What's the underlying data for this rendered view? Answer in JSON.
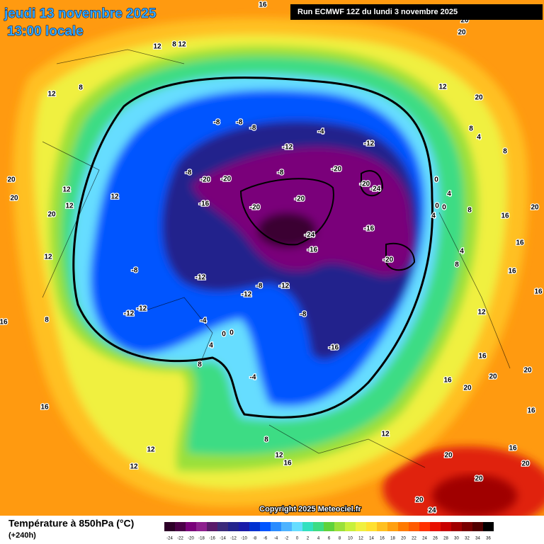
{
  "header": {
    "date": "jeudi 13 novembre 2025",
    "time": "13:00 locale",
    "run": "Run ECMWF 12Z du lundi 3 novembre 2025"
  },
  "copyright": "Copyright 2025 Meteociel.fr",
  "footer": {
    "title": "Température à 850hPa (°C)",
    "lead": "(+240h)"
  },
  "legend": {
    "labels": [
      -24,
      -22,
      -20,
      -18,
      -16,
      -14,
      -12,
      -10,
      -8,
      -6,
      -4,
      -2,
      0,
      2,
      4,
      6,
      8,
      10,
      12,
      14,
      16,
      18,
      20,
      22,
      24,
      26,
      28,
      30,
      32,
      34,
      36
    ],
    "colors": [
      "#2d0028",
      "#4b0047",
      "#7a007a",
      "#8e1f8e",
      "#5a1a6a",
      "#3b2a7a",
      "#23238c",
      "#1a1aa8",
      "#0030d0",
      "#0055ff",
      "#2a8cff",
      "#4db3ff",
      "#66ddff",
      "#33e0c0",
      "#3ddc84",
      "#5fd23b",
      "#9ae03a",
      "#c8f03c",
      "#f0f040",
      "#ffe030",
      "#ffc020",
      "#ffa010",
      "#ff7a00",
      "#ff5a00",
      "#ff3000",
      "#e81000",
      "#c80000",
      "#a00000",
      "#780000",
      "#500000",
      "#000000"
    ]
  },
  "map_labels": [
    -8,
    -8,
    -8,
    -12,
    -4,
    -12,
    -8,
    -20,
    -20,
    -8,
    -20,
    -20,
    -24,
    -20,
    -20,
    -16,
    -24,
    -16,
    -16,
    -20,
    -8,
    -12,
    -12,
    -8,
    -12,
    -8,
    -12,
    -12,
    -4,
    -16,
    -4,
    4,
    0,
    0,
    8,
    8,
    12,
    16,
    12,
    12,
    12,
    16,
    8,
    16,
    20,
    20,
    20,
    12,
    12,
    12,
    12,
    12,
    8,
    12,
    8,
    12,
    16,
    20,
    20,
    12,
    20,
    8,
    4,
    8,
    0,
    4,
    0,
    0,
    4,
    8,
    16,
    20,
    16,
    4,
    8,
    16,
    12,
    16,
    16,
    20,
    16,
    20,
    20,
    16,
    16,
    20,
    20,
    20,
    24,
    20
  ]
}
